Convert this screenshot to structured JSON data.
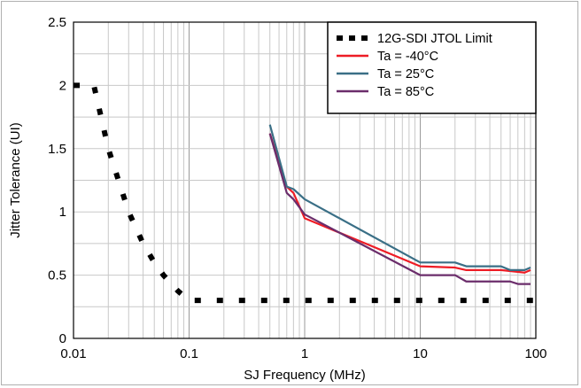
{
  "chart_data": {
    "type": "line",
    "xlabel": "SJ Frequency (MHz)",
    "ylabel": "Jitter Tolerance (UI)",
    "xscale": "log",
    "xlim": [
      0.01,
      100
    ],
    "ylim": [
      0,
      2.5
    ],
    "x_ticks": [
      {
        "value": 0.01,
        "label": "0.01"
      },
      {
        "value": 0.1,
        "label": "0.1"
      },
      {
        "value": 1,
        "label": "1"
      },
      {
        "value": 10,
        "label": "10"
      },
      {
        "value": 100,
        "label": "100"
      }
    ],
    "y_ticks": [
      {
        "value": 0,
        "label": "0"
      },
      {
        "value": 0.5,
        "label": "0.5"
      },
      {
        "value": 1,
        "label": "1"
      },
      {
        "value": 1.5,
        "label": "1.5"
      },
      {
        "value": 2,
        "label": "2"
      },
      {
        "value": 2.5,
        "label": "2.5"
      }
    ],
    "grid": true,
    "legend_position": "top-right",
    "series": [
      {
        "name": "12G-SDI JTOL Limit",
        "color": "#000000",
        "style": "dotted",
        "x": [
          0.01,
          0.012,
          0.015,
          0.02,
          0.03,
          0.04,
          0.05,
          0.06,
          0.08,
          0.1,
          0.12,
          0.13,
          1,
          10,
          100
        ],
        "y": [
          2.0,
          2.0,
          2.0,
          1.5,
          1.0,
          0.75,
          0.6,
          0.5,
          0.375,
          0.3,
          0.3,
          0.3,
          0.3,
          0.3,
          0.3
        ]
      },
      {
        "name": "Ta = -40°C",
        "color": "#ee1c25",
        "style": "solid",
        "x": [
          0.5,
          0.7,
          0.8,
          1.0,
          10,
          20,
          25,
          50,
          80,
          90
        ],
        "y": [
          1.62,
          1.2,
          1.15,
          0.95,
          0.57,
          0.56,
          0.54,
          0.54,
          0.52,
          0.54
        ]
      },
      {
        "name": "Ta = 25°C",
        "color": "#3a6f86",
        "style": "solid",
        "x": [
          0.5,
          0.7,
          0.8,
          1.0,
          10,
          20,
          25,
          50,
          60,
          80,
          90
        ],
        "y": [
          1.69,
          1.2,
          1.18,
          1.1,
          0.6,
          0.6,
          0.57,
          0.57,
          0.54,
          0.54,
          0.56
        ]
      },
      {
        "name": "Ta = 85°C",
        "color": "#6b2d6b",
        "style": "solid",
        "x": [
          0.5,
          0.7,
          0.8,
          1.0,
          10,
          20,
          25,
          60,
          70,
          90
        ],
        "y": [
          1.62,
          1.15,
          1.1,
          0.98,
          0.5,
          0.5,
          0.45,
          0.45,
          0.43,
          0.43
        ]
      }
    ]
  }
}
